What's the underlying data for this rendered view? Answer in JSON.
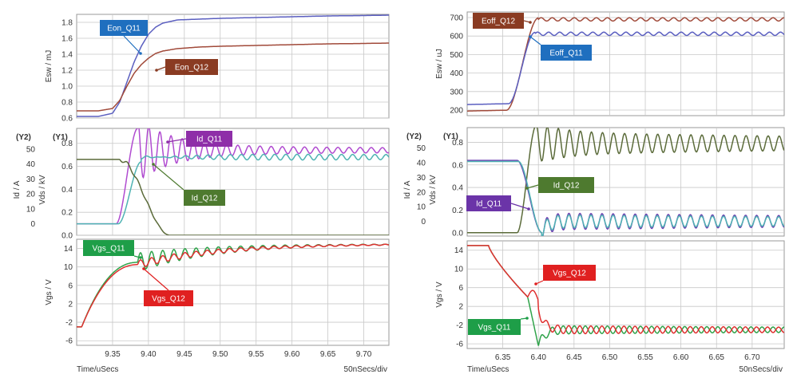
{
  "colors": {
    "blue": "#5b5fc0",
    "brown": "#a14a3a",
    "magenta": "#b04bd0",
    "teal": "#4fb3b3",
    "olive": "#5b6b3a",
    "purple": "#6a3fb0",
    "green": "#2fa34a",
    "red": "#e03030",
    "label_blue": "#1f6fbf",
    "label_brown": "#8a3b22",
    "label_magenta": "#8e2ea8",
    "label_olive": "#4e7a2f",
    "label_purple": "#6b34a8",
    "label_green": "#1e9e48",
    "label_red": "#e02020"
  },
  "chart_data": [
    {
      "id": "left",
      "type": "line",
      "xlabel": "Time/uSecs",
      "scale_label": "50nSecs/div",
      "xlim": [
        9.3,
        9.735
      ],
      "xticks": [
        "9.35",
        "9.40",
        "9.45",
        "9.50",
        "9.55",
        "9.60",
        "9.65",
        "9.70"
      ],
      "xtick_values": [
        9.35,
        9.4,
        9.45,
        9.5,
        9.55,
        9.6,
        9.65,
        9.7
      ],
      "panes": [
        {
          "ylabel": "Esw / mJ",
          "ylim": [
            0.6,
            1.9
          ],
          "yticks": [
            "0.6",
            "0.8",
            "1.0",
            "1.2",
            "1.4",
            "1.6",
            "1.8"
          ],
          "ytick_values": [
            0.6,
            0.8,
            1.0,
            1.2,
            1.4,
            1.6,
            1.8
          ],
          "series": [
            {
              "name": "Eon_Q11",
              "color": "blue",
              "x": [
                9.3,
                9.33,
                9.35,
                9.36,
                9.37,
                9.38,
                9.39,
                9.4,
                9.41,
                9.42,
                9.44,
                9.47,
                9.5,
                9.55,
                9.6,
                9.65,
                9.7,
                9.735
              ],
              "y": [
                0.62,
                0.62,
                0.66,
                0.8,
                1.05,
                1.3,
                1.5,
                1.65,
                1.74,
                1.79,
                1.83,
                1.84,
                1.85,
                1.86,
                1.87,
                1.88,
                1.885,
                1.89
              ]
            },
            {
              "name": "Eon_Q12",
              "color": "brown",
              "x": [
                9.3,
                9.33,
                9.35,
                9.36,
                9.37,
                9.38,
                9.39,
                9.4,
                9.41,
                9.42,
                9.44,
                9.47,
                9.5,
                9.55,
                9.6,
                9.65,
                9.7,
                9.735
              ],
              "y": [
                0.69,
                0.69,
                0.72,
                0.82,
                1.0,
                1.16,
                1.27,
                1.35,
                1.41,
                1.44,
                1.47,
                1.49,
                1.5,
                1.51,
                1.52,
                1.53,
                1.535,
                1.54
              ]
            }
          ],
          "callouts": [
            {
              "text": "Eon_Q11",
              "color": "label_blue"
            },
            {
              "text": "Eon_Q12",
              "color": "label_brown"
            }
          ]
        },
        {
          "ylabel": "Id / A",
          "ylabel2": "Vds / kV",
          "tag_y2": "(Y2)",
          "tag_y1": "(Y1)",
          "ylim": [
            0.0,
            0.93
          ],
          "yticks": [
            "0.0",
            "0.2",
            "0.4",
            "0.6",
            "0.8"
          ],
          "ytick_values": [
            0.0,
            0.2,
            0.4,
            0.6,
            0.8
          ],
          "y2ticks": [
            "0",
            "10",
            "20",
            "30",
            "40",
            "50"
          ],
          "y2tick_values": [
            0.1,
            0.23,
            0.36,
            0.49,
            0.62,
            0.75
          ],
          "series": [
            {
              "name": "Id_Q11",
              "color": "magenta",
              "kind": "current_rise",
              "base": 0.1,
              "peak": 0.93,
              "settle": 0.74,
              "t0": 9.355,
              "t1": 9.385,
              "period": 0.0155,
              "decay": 0.09
            },
            {
              "name": "Id_Q12",
              "color": "teal",
              "kind": "current_rise",
              "base": 0.1,
              "peak": 0.64,
              "settle": 0.68,
              "t0": 9.358,
              "t1": 9.39,
              "period": 0.0155,
              "decay": 0.12
            },
            {
              "name": "Vds",
              "color": "olive",
              "kind": "voltage_fall",
              "base": 0.66,
              "low": 0.0,
              "t0": 9.36,
              "t1": 9.43
            }
          ],
          "callouts": [
            {
              "text": "Id_Q11",
              "color": "label_magenta"
            },
            {
              "text": "Id_Q12",
              "color": "label_olive"
            }
          ]
        },
        {
          "ylabel": "Vgs / V",
          "ylim": [
            -7,
            16
          ],
          "yticks": [
            "-6",
            "-2",
            "2",
            "6",
            "10",
            "14"
          ],
          "ytick_values": [
            -6,
            -2,
            2,
            6,
            10,
            14
          ],
          "series": [
            {
              "name": "Vgs_Q11",
              "color": "green",
              "kind": "gate_rise",
              "low": -3,
              "plateau": 11,
              "final": 15,
              "t0": 9.3,
              "t1": 9.385,
              "period": 0.0155,
              "amp": 2.0,
              "decay": 0.12
            },
            {
              "name": "Vgs_Q12",
              "color": "red",
              "kind": "gate_rise",
              "low": -3,
              "plateau": 10.5,
              "final": 15,
              "t0": 9.3,
              "t1": 9.385,
              "period": 0.0155,
              "amp": 0.9,
              "decay": 0.16
            }
          ],
          "callouts": [
            {
              "text": "Vgs_Q11",
              "color": "label_green"
            },
            {
              "text": "Vgs_Q12",
              "color": "label_red"
            }
          ]
        }
      ]
    },
    {
      "id": "right",
      "type": "line",
      "xlabel": "Time/uSecs",
      "scale_label": "50nSecs/div",
      "xlim": [
        6.3,
        6.745
      ],
      "xticks": [
        "6.35",
        "6.40",
        "6.45",
        "6.50",
        "6.55",
        "6.60",
        "6.65",
        "6.70"
      ],
      "xtick_values": [
        6.35,
        6.4,
        6.45,
        6.5,
        6.55,
        6.6,
        6.65,
        6.7
      ],
      "panes": [
        {
          "ylabel": "Esw / uJ",
          "ylim": [
            170,
            730
          ],
          "yticks": [
            "200",
            "300",
            "400",
            "500",
            "600",
            "700"
          ],
          "ytick_values": [
            200,
            300,
            400,
            500,
            600,
            700
          ],
          "series": [
            {
              "name": "Eoff_Q12",
              "color": "brown",
              "kind": "eoff",
              "low": 195,
              "high": 690,
              "t0": 6.355,
              "t1": 6.4,
              "period": 0.0155,
              "amp": 9
            },
            {
              "name": "Eoff_Q11",
              "color": "blue",
              "kind": "eoff",
              "low": 230,
              "high": 612,
              "t0": 6.358,
              "t1": 6.395,
              "period": 0.0155,
              "amp": 9
            }
          ],
          "callouts": [
            {
              "text": "Eoff_Q12",
              "color": "label_brown"
            },
            {
              "text": "Eoff_Q11",
              "color": "label_blue"
            }
          ]
        },
        {
          "ylabel": "Id / A",
          "ylabel2": "Vds / kV",
          "tag_y2": "(Y2)",
          "tag_y1": "(Y1)",
          "ylim": [
            -0.03,
            0.93
          ],
          "yticks": [
            "0.0",
            "0.2",
            "0.4",
            "0.6",
            "0.8"
          ],
          "ytick_values": [
            0.0,
            0.2,
            0.4,
            0.6,
            0.8
          ],
          "y2ticks": [
            "0",
            "10",
            "20",
            "30",
            "40",
            "50"
          ],
          "y2tick_values": [
            0.1,
            0.23,
            0.36,
            0.49,
            0.62,
            0.75
          ],
          "series": [
            {
              "name": "Vds",
              "color": "olive",
              "kind": "vds_rise",
              "low": 0.0,
              "peak": 0.95,
              "final": 0.79,
              "t0": 6.37,
              "t1": 6.397,
              "period": 0.0155,
              "amp": 0.1,
              "decay": 0.8
            },
            {
              "name": "Id_Q11",
              "color": "purple",
              "kind": "id_fall",
              "high": 0.64,
              "final": 0.1,
              "t0": 6.37,
              "t1": 6.405,
              "period": 0.0155,
              "amp": 0.075,
              "decay": 0.9
            },
            {
              "name": "Id_Q12",
              "color": "teal",
              "kind": "id_fall",
              "high": 0.63,
              "final": 0.1,
              "t0": 6.372,
              "t1": 6.405,
              "period": 0.0155,
              "amp": 0.06,
              "decay": 0.9
            }
          ],
          "callouts": [
            {
              "text": "Id_Q12",
              "color": "label_olive"
            },
            {
              "text": "Id_Q11",
              "color": "label_purple"
            }
          ]
        },
        {
          "ylabel": "Vgs / V",
          "ylim": [
            -7,
            16
          ],
          "yticks": [
            "-6",
            "-2",
            "2",
            "6",
            "10",
            "14"
          ],
          "ytick_values": [
            -6,
            -2,
            2,
            6,
            10,
            14
          ],
          "series": [
            {
              "name": "Vgs_Q11",
              "color": "green",
              "kind": "gate_fall",
              "high": 15,
              "final": -3,
              "t0": 6.33,
              "t1": 6.4,
              "spike": -6.5,
              "period": 0.0155,
              "amp": 0.9,
              "decay": 0.8
            },
            {
              "name": "Vgs_Q12",
              "color": "red",
              "kind": "gate_fall_red",
              "high": 15,
              "final": -3,
              "t0": 6.33,
              "t1": 6.4,
              "spike": 6.0,
              "period": 0.0155,
              "amp": 0.9,
              "decay": 0.8
            }
          ],
          "callouts": [
            {
              "text": "Vgs_Q12",
              "color": "label_red"
            },
            {
              "text": "Vgs_Q11",
              "color": "label_green"
            }
          ]
        }
      ]
    }
  ]
}
